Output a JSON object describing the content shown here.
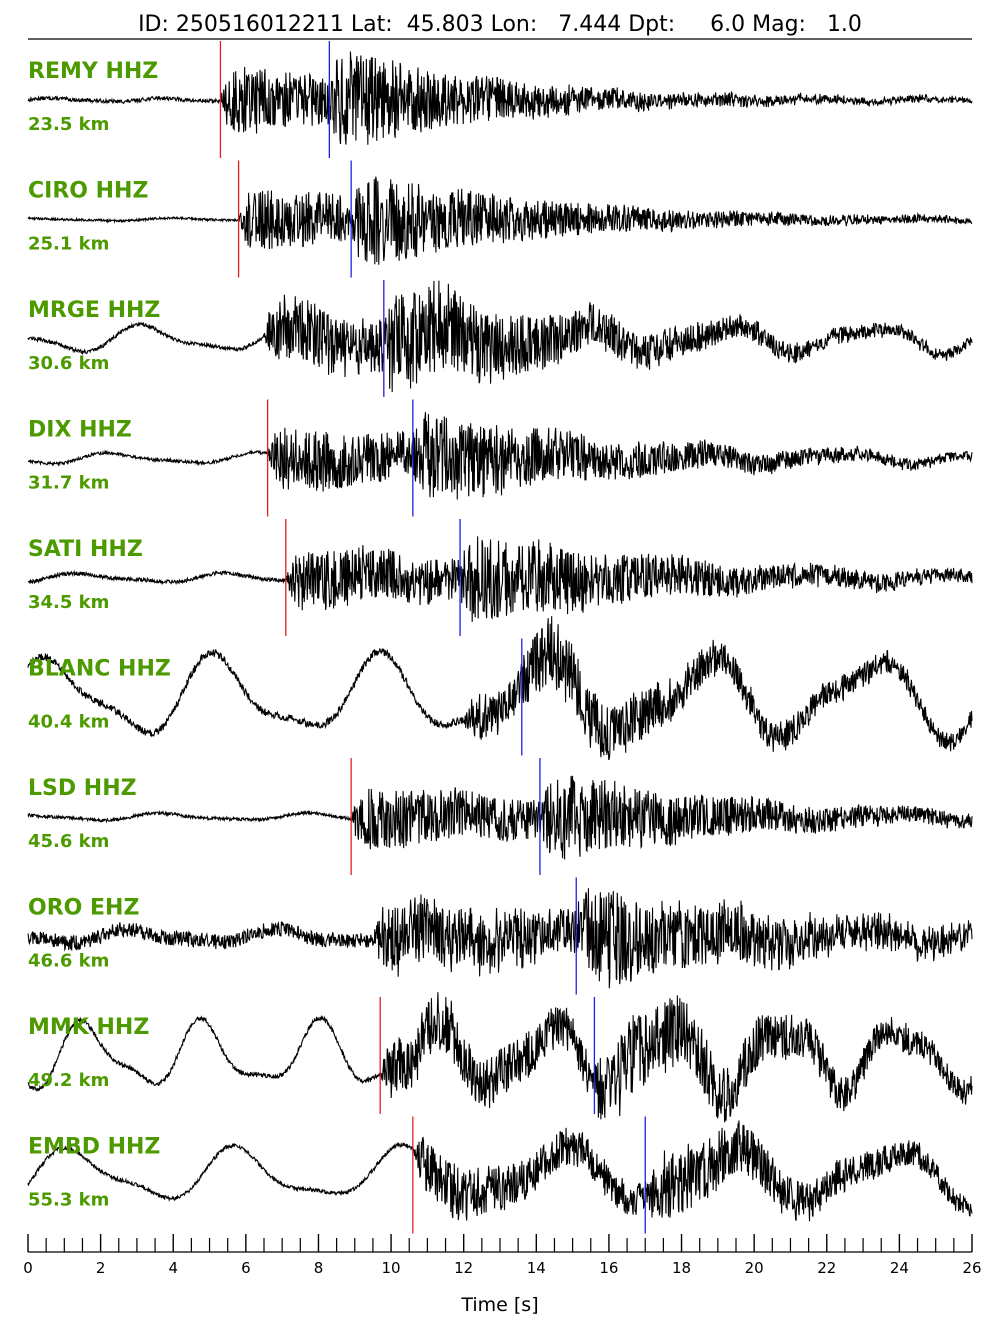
{
  "chart_data": {
    "type": "line",
    "title": "ID: 250516012211 Lat:  45.803 Lon:   7.444 Dpt:     6.0 Mag:   1.0",
    "xlabel": "Time [s]",
    "xlim": [
      0,
      26
    ],
    "major_ticks": [
      0,
      2,
      4,
      6,
      8,
      10,
      12,
      14,
      16,
      18,
      20,
      22,
      24,
      26
    ],
    "minor_tick_step": 0.5,
    "colors": {
      "label": "#4d9a00",
      "p_pick": "#e02020",
      "s_pick": "#2020e0",
      "trace": "#000000"
    },
    "traces": [
      {
        "station": "REMY HHZ",
        "distance": "23.5 km",
        "p": 5.3,
        "s": 8.3,
        "onset": 5.3,
        "noise": 0.05,
        "amp": 1.0,
        "low_amp": 0.04,
        "low_period": 3.0,
        "duration": 7
      },
      {
        "station": "CIRO HHZ",
        "distance": "25.1 km",
        "p": 5.8,
        "s": 8.9,
        "onset": 5.8,
        "noise": 0.03,
        "amp": 0.9,
        "low_amp": 0.03,
        "low_period": 4.0,
        "duration": 8
      },
      {
        "station": "MRGE HHZ",
        "distance": "30.6 km",
        "p": null,
        "s": 9.8,
        "onset": 6.5,
        "noise": 0.05,
        "amp": 1.0,
        "low_amp": 0.3,
        "low_period": 4.0,
        "duration": 9
      },
      {
        "station": "DIX HHZ",
        "distance": "31.7 km",
        "p": 6.6,
        "s": 10.6,
        "onset": 6.6,
        "noise": 0.04,
        "amp": 0.9,
        "low_amp": 0.12,
        "low_period": 4.0,
        "duration": 9
      },
      {
        "station": "SATI HHZ",
        "distance": "34.5 km",
        "p": 7.1,
        "s": 11.9,
        "onset": 7.1,
        "noise": 0.05,
        "amp": 0.9,
        "low_amp": 0.1,
        "low_period": 4.0,
        "duration": 10
      },
      {
        "station": "BLANC HHZ",
        "distance": "40.4 km",
        "p": null,
        "s": 13.6,
        "onset": 12.0,
        "noise": 0.1,
        "amp": 0.6,
        "low_amp": 0.9,
        "low_period": 4.5,
        "duration": 10
      },
      {
        "station": "LSD HHZ",
        "distance": "45.6 km",
        "p": 8.9,
        "s": 14.1,
        "onset": 8.9,
        "noise": 0.04,
        "amp": 0.9,
        "low_amp": 0.08,
        "low_period": 4.0,
        "duration": 9
      },
      {
        "station": "ORO EHZ",
        "distance": "46.6 km",
        "p": null,
        "s": 15.1,
        "onset": 9.5,
        "noise": 0.2,
        "amp": 1.0,
        "low_amp": 0.15,
        "low_period": 4.0,
        "duration": 10
      },
      {
        "station": "MMK HHZ",
        "distance": "49.2 km",
        "p": 9.7,
        "s": 15.6,
        "onset": 9.7,
        "noise": 0.06,
        "amp": 0.9,
        "low_amp": 0.75,
        "low_period": 3.2,
        "duration": 11
      },
      {
        "station": "EMBD HHZ",
        "distance": "55.3 km",
        "p": 10.6,
        "s": 17.0,
        "onset": 10.6,
        "noise": 0.05,
        "amp": 0.8,
        "low_amp": 0.6,
        "low_period": 4.5,
        "duration": 10
      }
    ]
  }
}
